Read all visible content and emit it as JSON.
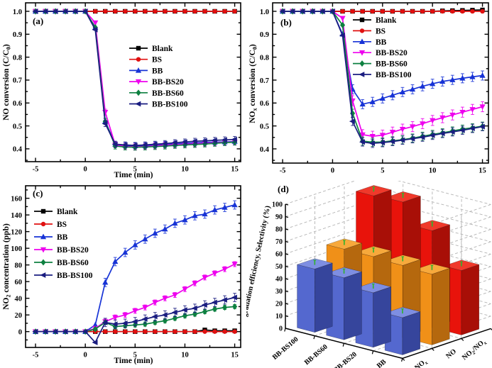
{
  "figure_bg": "#ffffff",
  "chart_data": [
    {
      "panel": "a",
      "type": "line",
      "panel_label": "(a)",
      "xlabel": "Time (min)",
      "ylabel": "NO conversion (C/C|0|)",
      "xlim": [
        -6,
        15.6
      ],
      "ylim": [
        0.344,
        1.037
      ],
      "xticks": [
        -5,
        0,
        5,
        10,
        15
      ],
      "xminor": [
        -2.5,
        2.5,
        7.5,
        12.5
      ],
      "yticks": [
        1.0,
        0.9,
        0.8,
        0.7,
        0.6,
        0.5,
        0.4
      ],
      "ytick_labels": [
        "1.0",
        "0.9",
        "0.8",
        "0.7",
        "0.6",
        "0.5",
        "0.4"
      ],
      "yminor": [
        0.35,
        0.45,
        0.55,
        0.65,
        0.75,
        0.85,
        0.95
      ],
      "x": [
        -5,
        -4,
        -3,
        -2,
        -1,
        0,
        1,
        2,
        3,
        4,
        5,
        6,
        7,
        8,
        9,
        10,
        11,
        12,
        13,
        14,
        15
      ],
      "series": [
        {
          "name": "Blank",
          "color": "#000000",
          "marker": "square",
          "err": 0.007,
          "err_from": 16,
          "values": [
            1,
            1,
            1,
            1,
            1,
            1,
            1,
            1,
            1,
            1,
            1,
            1,
            1,
            1,
            1,
            1,
            1,
            1,
            1,
            1,
            1
          ]
        },
        {
          "name": "BS",
          "color": "#e01010",
          "marker": "circle",
          "err": 0.006,
          "err_from": 16,
          "values": [
            1,
            1,
            1,
            1,
            1,
            1,
            1,
            1,
            1,
            1,
            1,
            1,
            1,
            1,
            1,
            1,
            1,
            1,
            1,
            1,
            1
          ]
        },
        {
          "name": "BB",
          "color": "#1733d6",
          "marker": "triangle-up",
          "err": 0.013,
          "err_from": 7,
          "values": [
            1,
            1,
            1,
            1,
            1,
            1,
            0.93,
            0.52,
            0.42,
            0.415,
            0.413,
            0.414,
            0.417,
            0.419,
            0.421,
            0.424,
            0.426,
            0.428,
            0.429,
            0.43,
            0.432
          ]
        },
        {
          "name": "BB-BS20",
          "color": "#ee00ee",
          "marker": "triangle-down",
          "err": 0.013,
          "err_from": 7,
          "values": [
            1,
            1,
            1,
            1,
            1,
            1,
            0.95,
            0.56,
            0.418,
            0.41,
            0.409,
            0.41,
            0.413,
            0.416,
            0.418,
            0.42,
            0.422,
            0.424,
            0.426,
            0.428,
            0.43
          ]
        },
        {
          "name": "BB-BS60",
          "color": "#0d8040",
          "marker": "diamond",
          "err": 0.013,
          "err_from": 7,
          "values": [
            1,
            1,
            1,
            1,
            1,
            1,
            0.93,
            0.52,
            0.412,
            0.408,
            0.407,
            0.408,
            0.41,
            0.412,
            0.415,
            0.417,
            0.419,
            0.421,
            0.424,
            0.427,
            0.429
          ]
        },
        {
          "name": "BB-BS100",
          "color": "#1a1d80",
          "marker": "triangle-left",
          "err": 0.013,
          "err_from": 7,
          "values": [
            1,
            1,
            1,
            1,
            1,
            1,
            0.92,
            0.51,
            0.42,
            0.417,
            0.415,
            0.417,
            0.42,
            0.423,
            0.427,
            0.43,
            0.433,
            0.435,
            0.437,
            0.439,
            0.441
          ]
        }
      ]
    },
    {
      "panel": "b",
      "type": "line",
      "panel_label": "(b)",
      "xlabel": "",
      "ylabel": "NO|x| conversion (C/C|0|)",
      "xlim": [
        -6,
        15.6
      ],
      "ylim": [
        0.338,
        1.037
      ],
      "xticks": [
        -5,
        0,
        5,
        10,
        15
      ],
      "xminor": [
        -2.5,
        2.5,
        7.5,
        12.5
      ],
      "yticks": [
        1.0,
        0.9,
        0.8,
        0.7,
        0.6,
        0.5,
        0.4
      ],
      "ytick_labels": [
        "1.0",
        "0.9",
        "0.8",
        "0.7",
        "0.6",
        "0.5",
        "0.4"
      ],
      "yminor": [
        0.35,
        0.45,
        0.55,
        0.65,
        0.75,
        0.85,
        0.95
      ],
      "x": [
        -5,
        -4,
        -3,
        -2,
        -1,
        0,
        1,
        2,
        3,
        4,
        5,
        6,
        7,
        8,
        9,
        10,
        11,
        12,
        13,
        14,
        15
      ],
      "series": [
        {
          "name": "Blank",
          "color": "#000000",
          "marker": "square",
          "err": 0.007,
          "err_from": 16,
          "values": [
            1,
            1,
            1,
            1,
            1,
            1,
            1,
            1,
            1,
            1,
            1,
            1,
            1,
            1,
            1,
            1,
            1.002,
            1.003,
            1.004,
            1.005,
            1.006
          ]
        },
        {
          "name": "BS",
          "color": "#e01010",
          "marker": "circle",
          "err": 0.006,
          "err_from": 16,
          "values": [
            1,
            1,
            1,
            1,
            1,
            1,
            1,
            1,
            1,
            1,
            1,
            1,
            1,
            1,
            1,
            1,
            1,
            1,
            1,
            1,
            1
          ]
        },
        {
          "name": "BB",
          "color": "#1733d6",
          "marker": "triangle-up",
          "err": 0.02,
          "err_from": 7,
          "values": [
            1,
            1,
            1,
            1,
            1,
            1,
            0.9,
            0.66,
            0.595,
            0.605,
            0.62,
            0.634,
            0.648,
            0.66,
            0.673,
            0.684,
            0.694,
            0.701,
            0.708,
            0.714,
            0.72
          ]
        },
        {
          "name": "BB-BS20",
          "color": "#ee00ee",
          "marker": "triangle-down",
          "err": 0.022,
          "err_from": 7,
          "values": [
            1,
            1,
            1,
            1,
            1,
            1,
            0.97,
            0.61,
            0.462,
            0.455,
            0.46,
            0.473,
            0.486,
            0.497,
            0.51,
            0.524,
            0.536,
            0.548,
            0.56,
            0.572,
            0.584
          ]
        },
        {
          "name": "BB-BS60",
          "color": "#0d8040",
          "marker": "diamond",
          "err": 0.018,
          "err_from": 7,
          "values": [
            1,
            1,
            1,
            1,
            1,
            1,
            0.94,
            0.555,
            0.434,
            0.429,
            0.43,
            0.435,
            0.44,
            0.447,
            0.455,
            0.463,
            0.47,
            0.478,
            0.486,
            0.492,
            0.499
          ]
        },
        {
          "name": "BB-BS100",
          "color": "#1a1d80",
          "marker": "triangle-left",
          "err": 0.018,
          "err_from": 7,
          "values": [
            1,
            1,
            1,
            1,
            1,
            1,
            0.895,
            0.52,
            0.43,
            0.424,
            0.427,
            0.432,
            0.438,
            0.444,
            0.451,
            0.459,
            0.467,
            0.474,
            0.481,
            0.489,
            0.497
          ]
        }
      ]
    },
    {
      "panel": "c",
      "type": "line",
      "panel_label": "(c)",
      "xlabel": "Time (min)",
      "ylabel": "NO|2| concentration (ppb)",
      "xlim": [
        -6,
        15.6
      ],
      "ylim": [
        -19,
        175
      ],
      "xticks": [
        -5,
        0,
        5,
        10,
        15
      ],
      "xminor": [
        -2.5,
        2.5,
        7.5,
        12.5
      ],
      "yticks": [
        160,
        140,
        120,
        100,
        80,
        60,
        40,
        20,
        0
      ],
      "ytick_labels": [
        "160",
        "140",
        "120",
        "100",
        "80",
        "60",
        "40",
        "20",
        "0"
      ],
      "yminor": [
        -10,
        10,
        30,
        50,
        70,
        90,
        110,
        130,
        150,
        170
      ],
      "x": [
        -5,
        -4,
        -3,
        -2,
        -1,
        0,
        1,
        2,
        3,
        4,
        5,
        6,
        7,
        8,
        9,
        10,
        11,
        12,
        13,
        14,
        15
      ],
      "series": [
        {
          "name": "Blank",
          "color": "#000000",
          "marker": "square",
          "err": 0,
          "err_from": 99,
          "values": [
            0,
            0,
            0,
            0,
            0,
            0,
            0,
            0,
            0,
            0,
            0,
            0,
            0,
            0,
            0,
            0,
            0,
            2,
            1,
            1,
            1
          ]
        },
        {
          "name": "BS",
          "color": "#e01010",
          "marker": "circle",
          "err": 0,
          "err_from": 99,
          "values": [
            0,
            0,
            0,
            0,
            0,
            0,
            0,
            0,
            0,
            0,
            0,
            0,
            0,
            0,
            0,
            0,
            0,
            0,
            0,
            0,
            0
          ]
        },
        {
          "name": "BB",
          "color": "#1733d6",
          "marker": "triangle-up",
          "err": 5,
          "err_from": 7,
          "values": [
            0,
            0,
            0,
            0,
            0,
            0,
            8,
            59,
            84,
            95,
            104,
            111,
            118,
            123,
            130,
            134,
            139,
            141,
            146,
            149,
            152
          ]
        },
        {
          "name": "BB-BS20",
          "color": "#ee00ee",
          "marker": "triangle-down",
          "err": 3,
          "err_from": 7,
          "values": [
            0,
            0,
            0,
            0,
            0,
            0,
            4,
            12,
            17,
            20,
            25,
            29,
            35,
            40,
            44,
            51,
            58,
            65,
            70,
            75,
            81
          ]
        },
        {
          "name": "BB-BS60",
          "color": "#0d8040",
          "marker": "diamond",
          "err": 2.5,
          "err_from": 7,
          "values": [
            0,
            0,
            0,
            0,
            0,
            0,
            3,
            11,
            6,
            7,
            8,
            9,
            11,
            13,
            16,
            19,
            21,
            24,
            27,
            29,
            30
          ]
        },
        {
          "name": "BB-BS100",
          "color": "#1a1d80",
          "marker": "triangle-left",
          "err": 5,
          "err_from": 7,
          "values": [
            0,
            0,
            0,
            0,
            0,
            0,
            -13,
            11,
            9,
            10,
            12,
            15,
            18,
            20,
            23,
            26,
            28,
            32,
            35,
            38,
            41
          ]
        }
      ]
    },
    {
      "panel": "d",
      "type": "bar3d",
      "panel_label": "(d)",
      "zlabel": "Photodegradation efficiency, Selectivity (%)",
      "zlim": [
        0,
        100
      ],
      "zticks": [
        0,
        10,
        20,
        30,
        40,
        50,
        60,
        70,
        80,
        90,
        100
      ],
      "categories": [
        "BB-BS100",
        "BB-BS60",
        "BB-BS20",
        "BB"
      ],
      "err_color": "#2db32d",
      "rows": [
        {
          "name": "NO|x|",
          "front": "#5468cf",
          "side": "#36459c",
          "top": "#7e8ee2",
          "values": [
            51,
            50,
            44,
            30
          ],
          "err": 2
        },
        {
          "name": "NO",
          "front": "#f09018",
          "side": "#b5680e",
          "top": "#f7a93c",
          "values": [
            59,
            59,
            58,
            57
          ],
          "err": 2
        },
        {
          "name": "NO|2|/NO|x|",
          "front": "#e8130b",
          "side": "#a80f07",
          "top": "#f0392b",
          "values": [
            94,
            95,
            78,
            52
          ],
          "err": 2
        }
      ]
    }
  ]
}
